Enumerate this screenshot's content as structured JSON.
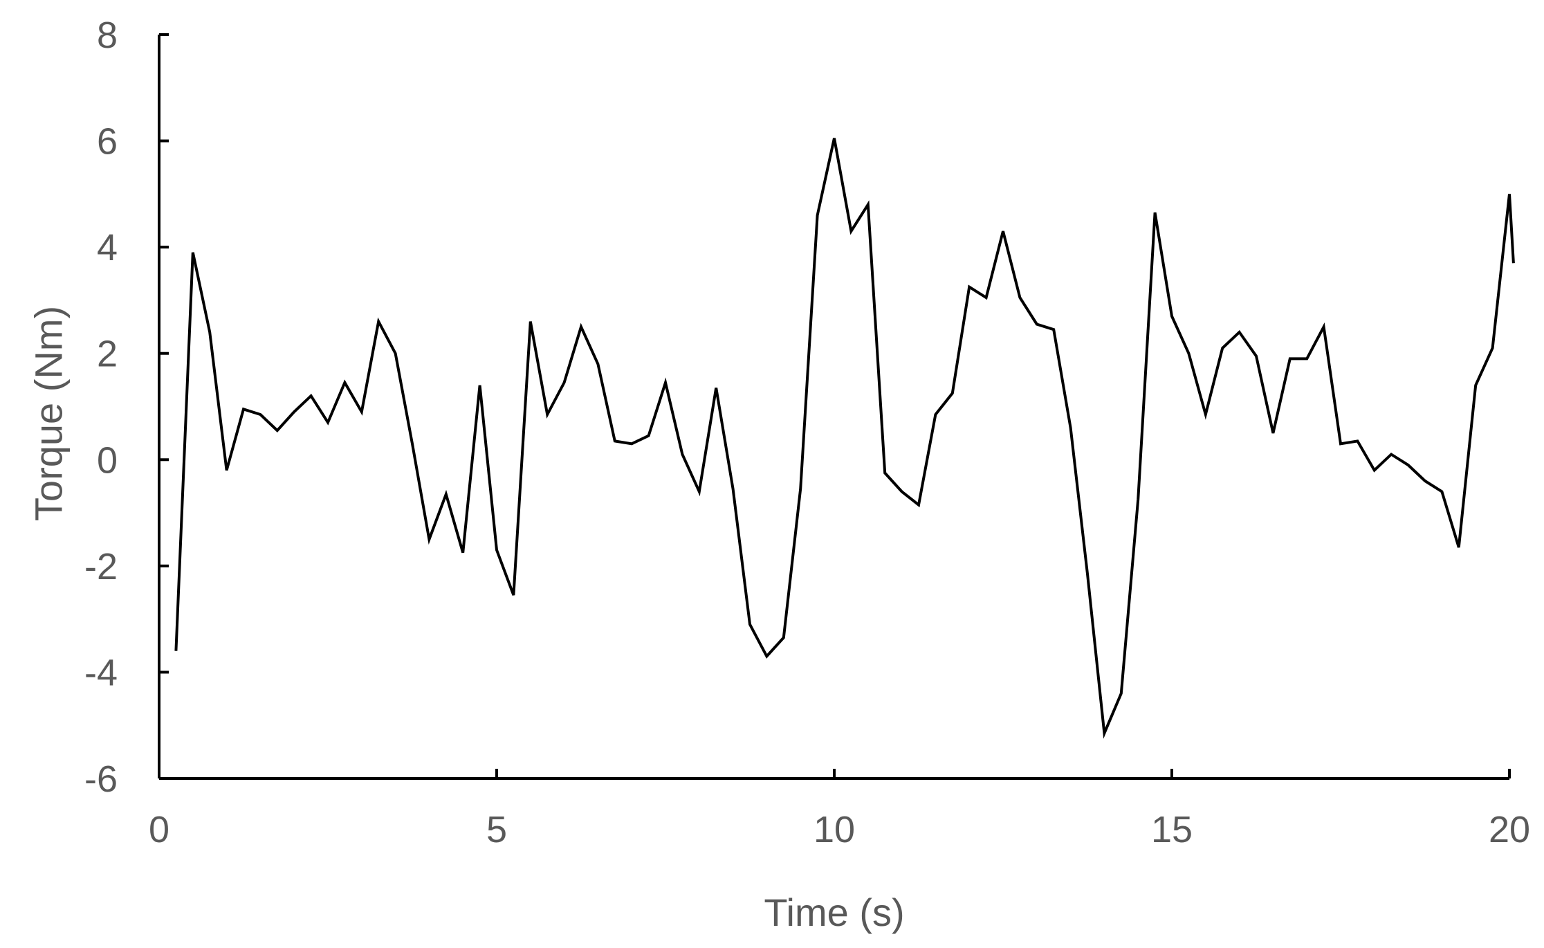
{
  "chart_data": {
    "type": "line",
    "title": "",
    "xlabel": "Time (s)",
    "ylabel": "Torque (Nm)",
    "xlim": [
      0,
      20
    ],
    "ylim": [
      -6,
      8
    ],
    "xticks": [
      0,
      5,
      10,
      15,
      20
    ],
    "yticks": [
      -6,
      -4,
      -2,
      0,
      2,
      4,
      6,
      8
    ],
    "grid": false,
    "legend": "none",
    "line_color": "#000000",
    "x": [
      0.25,
      0.5,
      0.75,
      1.0,
      1.25,
      1.5,
      1.75,
      2.0,
      2.25,
      2.5,
      2.75,
      3.0,
      3.25,
      3.5,
      3.75,
      4.0,
      4.25,
      4.5,
      4.75,
      5.0,
      5.25,
      5.5,
      5.75,
      6.0,
      6.25,
      6.5,
      6.75,
      7.0,
      7.25,
      7.5,
      7.75,
      8.0,
      8.25,
      8.5,
      8.75,
      9.0,
      9.25,
      9.5,
      9.75,
      10.0,
      10.25,
      10.5,
      10.75,
      11.0,
      11.25,
      11.5,
      11.75,
      12.0,
      12.25,
      12.5,
      12.75,
      13.0,
      13.25,
      13.5,
      13.75,
      14.0,
      14.25,
      14.5,
      14.75,
      15.0,
      15.25,
      15.5,
      15.75,
      16.0,
      16.25,
      16.5,
      16.75,
      17.0,
      17.25,
      17.5,
      17.75,
      18.0,
      18.25,
      18.5,
      18.75,
      19.0,
      19.25,
      19.5,
      19.75,
      20.0,
      20.06
    ],
    "series": [
      {
        "values": [
          -3.6,
          3.9,
          2.4,
          -0.2,
          0.95,
          0.85,
          0.55,
          0.9,
          1.2,
          0.7,
          1.45,
          0.9,
          2.6,
          2.0,
          0.3,
          -1.5,
          -0.65,
          -1.75,
          1.4,
          -1.7,
          -2.55,
          2.6,
          0.85,
          1.45,
          2.5,
          1.8,
          0.35,
          0.3,
          0.45,
          1.45,
          0.1,
          -0.6,
          1.35,
          -0.55,
          -3.1,
          -3.7,
          -3.35,
          -0.55,
          4.6,
          6.05,
          4.3,
          4.8,
          -0.25,
          -0.6,
          -0.85,
          0.85,
          1.25,
          3.25,
          3.05,
          4.3,
          3.05,
          2.55,
          2.45,
          0.6,
          -2.15,
          -5.15,
          -4.4,
          -0.75,
          4.65,
          2.7,
          2.0,
          0.85,
          2.1,
          2.4,
          1.95,
          0.5,
          1.9,
          1.9,
          2.5,
          0.3,
          0.35,
          -0.2,
          0.1,
          -0.1,
          -0.4,
          -0.6,
          -1.65,
          1.4,
          2.1,
          5.0,
          3.7
        ]
      }
    ]
  }
}
